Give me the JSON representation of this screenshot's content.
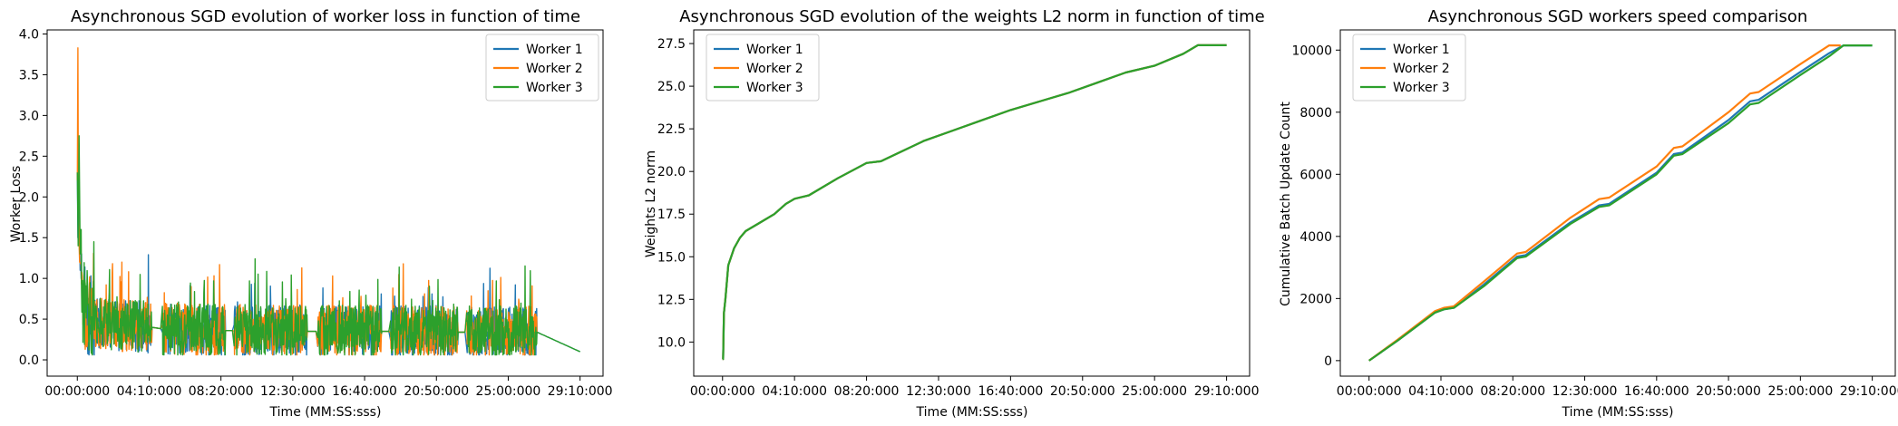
{
  "colors": {
    "worker1": "#1f77b4",
    "worker2": "#ff7f0e",
    "worker3": "#2ca02c"
  },
  "chart_data": [
    {
      "type": "line",
      "title": "Asynchronous SGD evolution of worker loss in function of time",
      "xlabel": "Time (MM:SS:sss)",
      "ylabel": "Worker Loss",
      "xlim": [
        -105,
        1830
      ],
      "ylim": [
        -0.2,
        4.05
      ],
      "x_ticks": [
        0,
        250,
        500,
        750,
        1000,
        1250,
        1500,
        1750
      ],
      "x_tick_labels": [
        "00:00:000",
        "04:10:000",
        "08:20:000",
        "12:30:000",
        "16:40:000",
        "20:50:000",
        "25:00:000",
        "29:10:000"
      ],
      "y_ticks": [
        0.0,
        0.5,
        1.0,
        1.5,
        2.0,
        2.5,
        3.0,
        3.5,
        4.0
      ],
      "y_tick_labels": [
        "0.0",
        "0.5",
        "1.0",
        "1.5",
        "2.0",
        "2.5",
        "3.0",
        "3.5",
        "4.0"
      ],
      "grid": false,
      "legend": "top-right",
      "noise": true,
      "segments": [
        [
          10,
          260
        ],
        [
          295,
          515
        ],
        [
          545,
          800
        ],
        [
          835,
          1060
        ],
        [
          1090,
          1325
        ],
        [
          1355,
          1600
        ]
      ],
      "series": [
        {
          "name": "Worker 1",
          "color": "#1f77b4",
          "x": [
            0,
            2,
            5,
            10,
            20,
            40,
            80,
            150,
            260,
            295,
            400,
            515,
            545,
            700,
            800,
            835,
            1000,
            1060,
            1090,
            1200,
            1325,
            1355,
            1500,
            1600,
            1750
          ],
          "y": [
            2.3,
            1.5,
            2.0,
            1.1,
            0.7,
            0.5,
            0.45,
            0.42,
            0.4,
            0.38,
            0.37,
            0.36,
            0.36,
            0.36,
            0.35,
            0.35,
            0.35,
            0.35,
            0.35,
            0.35,
            0.34,
            0.34,
            0.34,
            0.34,
            0.1
          ]
        },
        {
          "name": "Worker 2",
          "color": "#ff7f0e",
          "x": [
            0,
            2,
            4,
            8,
            15,
            30,
            60,
            150,
            260,
            295,
            400,
            515,
            545,
            700,
            800,
            835,
            1000,
            1060,
            1090,
            1200,
            1325,
            1355,
            1500,
            1600
          ],
          "y": [
            2.2,
            3.83,
            1.7,
            1.2,
            0.8,
            0.55,
            0.45,
            0.42,
            0.4,
            0.38,
            0.37,
            0.36,
            0.36,
            0.36,
            0.35,
            0.35,
            0.35,
            0.35,
            0.35,
            0.35,
            0.34,
            0.34,
            0.34,
            0.34
          ]
        },
        {
          "name": "Worker 3",
          "color": "#2ca02c",
          "x": [
            0,
            3,
            6,
            10,
            20,
            40,
            80,
            150,
            260,
            295,
            400,
            515,
            545,
            700,
            800,
            835,
            1000,
            1060,
            1090,
            1200,
            1325,
            1355,
            1500,
            1600,
            1750
          ],
          "y": [
            2.3,
            1.4,
            2.75,
            1.3,
            0.75,
            0.5,
            0.45,
            0.42,
            0.4,
            0.38,
            0.37,
            0.36,
            0.36,
            0.36,
            0.35,
            0.35,
            0.35,
            0.35,
            0.35,
            0.35,
            0.34,
            0.34,
            0.34,
            0.34,
            0.1
          ]
        }
      ]
    },
    {
      "type": "line",
      "title": "Asynchronous SGD evolution of the weights L2 norm in function of time",
      "xlabel": "Time (MM:SS:sss)",
      "ylabel": "Weights L2 norm",
      "xlim": [
        -100,
        1830
      ],
      "ylim": [
        8.0,
        28.3
      ],
      "x_ticks": [
        0,
        250,
        500,
        750,
        1000,
        1250,
        1500,
        1750
      ],
      "x_tick_labels": [
        "00:00:000",
        "04:10:000",
        "08:20:000",
        "12:30:000",
        "16:40:000",
        "20:50:000",
        "25:00:000",
        "29:10:000"
      ],
      "y_ticks": [
        10.0,
        12.5,
        15.0,
        17.5,
        20.0,
        22.5,
        25.0,
        27.5
      ],
      "y_tick_labels": [
        "10.0",
        "12.5",
        "15.0",
        "17.5",
        "20.0",
        "22.5",
        "25.0",
        "27.5"
      ],
      "grid": false,
      "legend": "top-left",
      "noise": false,
      "series": [
        {
          "name": "Worker 1",
          "color": "#1f77b4",
          "x": [
            0,
            2,
            5,
            10,
            20,
            40,
            60,
            80,
            120,
            180,
            220,
            250,
            300,
            400,
            500,
            550,
            600,
            700,
            800,
            900,
            1000,
            1100,
            1200,
            1300,
            1400,
            1500,
            1600,
            1650,
            1750
          ],
          "y": [
            9.0,
            9.0,
            11.7,
            12.5,
            14.5,
            15.5,
            16.1,
            16.5,
            16.9,
            17.5,
            18.1,
            18.4,
            18.6,
            19.6,
            20.5,
            20.6,
            21.0,
            21.8,
            22.4,
            23.0,
            23.6,
            24.1,
            24.6,
            25.2,
            25.8,
            26.2,
            26.9,
            27.4,
            27.4
          ]
        },
        {
          "name": "Worker 2",
          "color": "#ff7f0e",
          "x": [
            0,
            2,
            5,
            10,
            20,
            40,
            60,
            80,
            120,
            180,
            220,
            250,
            300,
            400,
            500,
            550,
            600,
            700,
            800,
            900,
            1000,
            1100,
            1200,
            1300,
            1400,
            1500,
            1600,
            1650,
            1750
          ],
          "y": [
            9.0,
            9.0,
            11.7,
            12.5,
            14.5,
            15.5,
            16.1,
            16.5,
            16.9,
            17.5,
            18.1,
            18.4,
            18.6,
            19.6,
            20.5,
            20.6,
            21.0,
            21.8,
            22.4,
            23.0,
            23.6,
            24.1,
            24.6,
            25.2,
            25.8,
            26.2,
            26.9,
            27.4,
            27.4
          ]
        },
        {
          "name": "Worker 3",
          "color": "#2ca02c",
          "x": [
            0,
            2,
            5,
            10,
            20,
            40,
            60,
            80,
            120,
            180,
            220,
            250,
            300,
            400,
            500,
            550,
            600,
            700,
            800,
            900,
            1000,
            1100,
            1200,
            1300,
            1400,
            1500,
            1600,
            1650,
            1750
          ],
          "y": [
            9.0,
            9.0,
            11.7,
            12.5,
            14.5,
            15.5,
            16.1,
            16.5,
            16.9,
            17.5,
            18.1,
            18.4,
            18.6,
            19.6,
            20.5,
            20.6,
            21.0,
            21.8,
            22.4,
            23.0,
            23.6,
            24.1,
            24.6,
            25.2,
            25.8,
            26.2,
            26.9,
            27.4,
            27.4
          ]
        }
      ]
    },
    {
      "type": "line",
      "title": "Asynchronous SGD workers speed comparison",
      "xlabel": "Time (MM:SS:sss)",
      "ylabel": "Cumulative Batch Update Count",
      "xlim": [
        -100,
        1830
      ],
      "ylim": [
        -500,
        10650
      ],
      "x_ticks": [
        0,
        250,
        500,
        750,
        1000,
        1250,
        1500,
        1750
      ],
      "x_tick_labels": [
        "00:00:000",
        "04:10:000",
        "08:20:000",
        "12:30:000",
        "16:40:000",
        "20:50:000",
        "25:00:000",
        "29:10:000"
      ],
      "y_ticks": [
        0,
        2000,
        4000,
        6000,
        8000,
        10000
      ],
      "y_tick_labels": [
        "0",
        "2000",
        "4000",
        "6000",
        "8000",
        "10000"
      ],
      "grid": false,
      "legend": "top-left",
      "noise": false,
      "series": [
        {
          "name": "Worker 1",
          "color": "#1f77b4",
          "x": [
            0,
            100,
            230,
            260,
            295,
            400,
            515,
            545,
            700,
            800,
            835,
            1000,
            1060,
            1090,
            1250,
            1325,
            1355,
            1500,
            1600,
            1650,
            1750
          ],
          "y": [
            0,
            650,
            1550,
            1650,
            1700,
            2450,
            3350,
            3400,
            4450,
            5000,
            5050,
            6050,
            6650,
            6700,
            7750,
            8350,
            8400,
            9300,
            9900,
            10150,
            10150
          ]
        },
        {
          "name": "Worker 2",
          "color": "#ff7f0e",
          "x": [
            0,
            100,
            230,
            260,
            295,
            400,
            515,
            545,
            700,
            800,
            835,
            1000,
            1060,
            1090,
            1250,
            1325,
            1355,
            1500,
            1600,
            1640
          ],
          "y": [
            0,
            680,
            1600,
            1700,
            1750,
            2550,
            3450,
            3500,
            4600,
            5200,
            5250,
            6250,
            6850,
            6900,
            8000,
            8600,
            8650,
            9550,
            10150,
            10150
          ]
        },
        {
          "name": "Worker 3",
          "color": "#2ca02c",
          "x": [
            0,
            100,
            230,
            260,
            295,
            400,
            515,
            545,
            700,
            800,
            835,
            1000,
            1060,
            1090,
            1250,
            1325,
            1355,
            1500,
            1600,
            1650,
            1750
          ],
          "y": [
            0,
            650,
            1550,
            1650,
            1700,
            2400,
            3300,
            3350,
            4400,
            4950,
            5000,
            6000,
            6600,
            6650,
            7650,
            8250,
            8300,
            9200,
            9800,
            10150,
            10150
          ]
        }
      ]
    }
  ]
}
